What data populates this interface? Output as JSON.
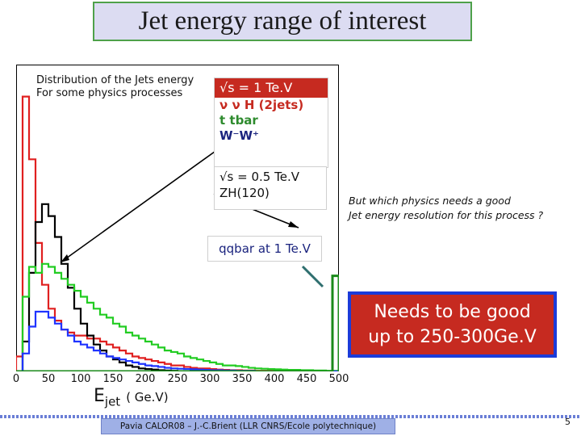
{
  "slide": {
    "title": "Jet energy range of interest",
    "page_number": "5",
    "footer": "Pavia CALOR08 – J.-C.Brient (LLR CNRS/Ecole polytechnique)"
  },
  "plot": {
    "caption_line1": "Distribution of the Jets energy",
    "caption_line2": "For some physics processes",
    "legend_top": {
      "header": "√s = 1 Te.V",
      "entries": [
        {
          "label": "ν ν H (2jets)",
          "color": "#c62a20"
        },
        {
          "label": "t tbar",
          "color": "#2e8b2e"
        },
        {
          "label": "W⁻W⁺",
          "color": "#1a237e"
        }
      ]
    },
    "legend_bottom": {
      "line1": "√s = 0.5 Te.V",
      "line2": "ZH(120)"
    },
    "qqbar_label": "qqbar at 1 Te.V",
    "note_line1": "But which physics needs a good",
    "note_line2": "Jet energy resolution for this process ?",
    "callout_line1": "Needs to be good",
    "callout_line2": "up to 250-300Ge.V",
    "x_label_main": "E",
    "x_label_sub": "jet",
    "x_label_unit": "( Ge.V)"
  },
  "chart_data": {
    "type": "histogram",
    "xlim": [
      0,
      500
    ],
    "ylim": [
      0,
      1
    ],
    "x_ticks": [
      "0",
      "50",
      "100",
      "150",
      "200",
      "250",
      "300",
      "350",
      "400",
      "450",
      "500"
    ],
    "bin_width": 10,
    "series": [
      {
        "name": "red",
        "color": "#e02020",
        "values": [
          0.05,
          0.92,
          0.71,
          0.43,
          0.29,
          0.21,
          0.17,
          0.14,
          0.13,
          0.12,
          0.12,
          0.11,
          0.11,
          0.1,
          0.09,
          0.08,
          0.07,
          0.06,
          0.05,
          0.045,
          0.04,
          0.035,
          0.03,
          0.025,
          0.02,
          0.02,
          0.015,
          0.012,
          0.01,
          0.01,
          0.008,
          0.006,
          0.005,
          0.004,
          0.004,
          0.003,
          0.003,
          0.002,
          0.002,
          0.002,
          0.001,
          0.001,
          0.001,
          0.001,
          0.001,
          0.001,
          0.001,
          0.001,
          0.001,
          0.001
        ]
      },
      {
        "name": "black",
        "color": "#000000",
        "values": [
          0.0,
          0.1,
          0.33,
          0.5,
          0.56,
          0.52,
          0.45,
          0.36,
          0.28,
          0.21,
          0.16,
          0.12,
          0.09,
          0.07,
          0.05,
          0.04,
          0.03,
          0.02,
          0.015,
          0.01,
          0.008,
          0.006,
          0.004,
          0.003,
          0.002,
          0.001,
          0.001,
          0.0,
          0.0,
          0.0,
          0.0,
          0.0,
          0.0,
          0.0,
          0.0,
          0.0,
          0.0,
          0.0,
          0.0,
          0.0,
          0.0,
          0.0,
          0.0,
          0.0,
          0.0,
          0.0,
          0.0,
          0.0,
          0.0,
          0.0
        ]
      },
      {
        "name": "green",
        "color": "#22cc22",
        "values": [
          0.0,
          0.25,
          0.35,
          0.33,
          0.36,
          0.35,
          0.33,
          0.31,
          0.29,
          0.27,
          0.25,
          0.23,
          0.21,
          0.19,
          0.18,
          0.16,
          0.15,
          0.13,
          0.12,
          0.11,
          0.1,
          0.09,
          0.08,
          0.07,
          0.065,
          0.06,
          0.05,
          0.045,
          0.04,
          0.035,
          0.03,
          0.025,
          0.02,
          0.02,
          0.018,
          0.015,
          0.012,
          0.01,
          0.009,
          0.008,
          0.007,
          0.006,
          0.005,
          0.005,
          0.004,
          0.004,
          0.003,
          0.003,
          0.002,
          0.002
        ]
      },
      {
        "name": "blue",
        "color": "#1f33ff",
        "values": [
          0.0,
          0.06,
          0.15,
          0.2,
          0.2,
          0.18,
          0.16,
          0.14,
          0.12,
          0.1,
          0.09,
          0.08,
          0.07,
          0.06,
          0.05,
          0.045,
          0.04,
          0.035,
          0.03,
          0.025,
          0.02,
          0.018,
          0.015,
          0.012,
          0.01,
          0.009,
          0.008,
          0.007,
          0.006,
          0.005,
          0.004,
          0.004,
          0.003,
          0.003,
          0.002,
          0.002,
          0.002,
          0.001,
          0.001,
          0.001,
          0.001,
          0.001,
          0.001,
          0.001,
          0.001,
          0.001,
          0.0,
          0.0,
          0.0,
          0.0
        ]
      },
      {
        "name": "qqbar",
        "color": "#1a8a1a",
        "values": [
          0.0,
          0.0,
          0.0,
          0.0,
          0.0,
          0.0,
          0.0,
          0.0,
          0.0,
          0.0,
          0.0,
          0.0,
          0.0,
          0.0,
          0.0,
          0.0,
          0.0,
          0.0,
          0.0,
          0.0,
          0.0,
          0.0,
          0.0,
          0.0,
          0.0,
          0.0,
          0.0,
          0.0,
          0.0,
          0.0,
          0.0,
          0.0,
          0.0,
          0.0,
          0.0,
          0.0,
          0.0,
          0.0,
          0.0,
          0.0,
          0.0,
          0.0,
          0.0,
          0.0,
          0.0,
          0.0,
          0.0,
          0.0,
          0.0,
          0.32
        ]
      }
    ]
  }
}
